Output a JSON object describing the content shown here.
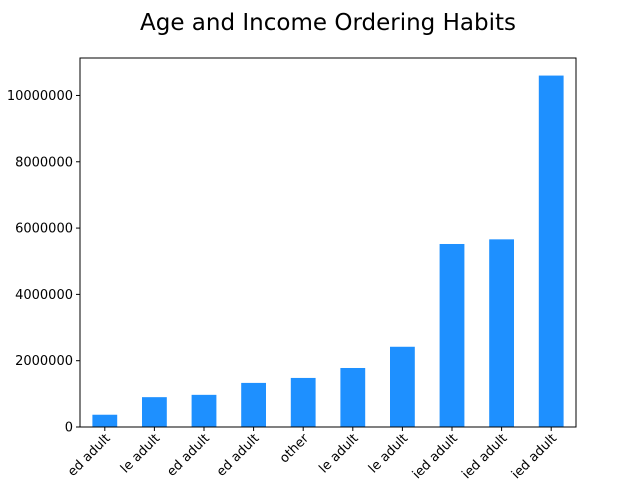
{
  "chart_data": {
    "type": "bar",
    "title": "Age and Income Ordering Habits",
    "xlabel": "",
    "ylabel": "",
    "categories": [
      "ed adult",
      "le adult",
      "ed adult",
      "ed adult",
      "other",
      "le adult",
      "le adult",
      "ied adult",
      "ied adult",
      "ied adult"
    ],
    "values": [
      370000,
      900000,
      970000,
      1330000,
      1480000,
      1780000,
      2420000,
      5520000,
      5660000,
      10600000
    ],
    "ylim": [
      0,
      11130000
    ],
    "yticks": [
      0,
      2000000,
      4000000,
      6000000,
      8000000,
      10000000
    ],
    "ytick_labels": [
      "0",
      "2000000",
      "4000000",
      "6000000",
      "8000000",
      "10000000"
    ],
    "bar_color": "#1e90ff",
    "grid": false,
    "legend": "none"
  }
}
